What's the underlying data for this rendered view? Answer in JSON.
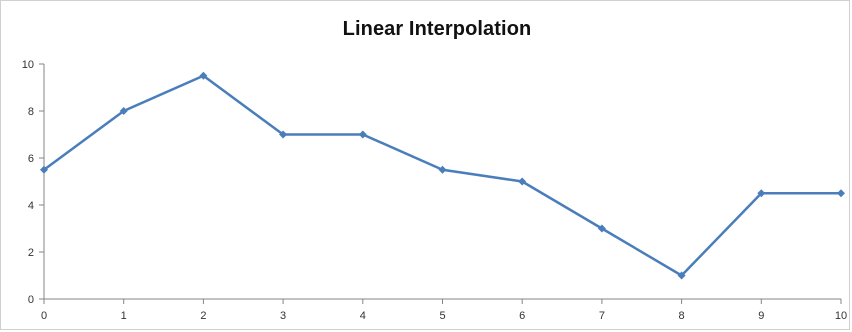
{
  "chart_data": {
    "type": "line",
    "title": "Linear Interpolation",
    "xlabel": "",
    "ylabel": "",
    "x": [
      0,
      1,
      2,
      3,
      4,
      5,
      6,
      7,
      8,
      9,
      10
    ],
    "series": [
      {
        "values": [
          5.5,
          8,
          9.5,
          7,
          7,
          5.5,
          5,
          3,
          1,
          4.5,
          4.5
        ]
      }
    ],
    "xlim": [
      0,
      10
    ],
    "ylim": [
      0,
      10
    ],
    "x_ticks": [
      "0",
      "1",
      "2",
      "3",
      "4",
      "5",
      "6",
      "7",
      "8",
      "9",
      "10"
    ],
    "y_ticks": [
      "0",
      "2",
      "4",
      "6",
      "8",
      "10"
    ],
    "grid": false,
    "legend": "none",
    "colors": {
      "line": "#4a7ebb",
      "axis": "#868686",
      "text": "#111111"
    }
  }
}
